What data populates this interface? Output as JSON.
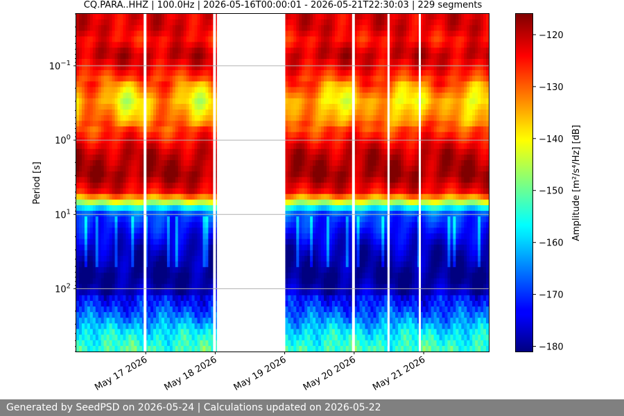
{
  "chart_data": {
    "type": "heatmap",
    "title": "CQ.PARA..HHZ | 100.0Hz | 2026-05-16T00:00:01 - 2026-05-21T22:30:03 | 229 segments",
    "xlabel": "",
    "ylabel": "Period [s]",
    "colorbar_label": "Amplitude [m²/s⁴/Hz] [dB]",
    "colormap": "jet",
    "x_range": [
      "2026-05-16T00:00:01",
      "2026-05-21T22:30:03"
    ],
    "x_ticks": [
      "May 17 2026",
      "May 18 2026",
      "May 19 2026",
      "May 20 2026",
      "May 21 2026"
    ],
    "y_scale": "log",
    "y_range": [
      0.02,
      700
    ],
    "y_ticks": [
      "10^{-1}",
      "10^{0}",
      "10^{1}",
      "10^{2}"
    ],
    "color_range": [
      -181,
      -116
    ],
    "colorbar_ticks": [
      -120,
      -130,
      -140,
      -150,
      -160,
      -170,
      -180
    ],
    "grid": "horizontal",
    "data_gap": [
      "2026-05-18T00:00:00",
      "2026-05-19T00:00:00"
    ],
    "period_profile": [
      {
        "period": 0.03,
        "dB": -122
      },
      {
        "period": 0.045,
        "dB": -125
      },
      {
        "period": 0.07,
        "dB": -120
      },
      {
        "period": 0.12,
        "dB": -125
      },
      {
        "period": 0.2,
        "dB": -133
      },
      {
        "period": 0.3,
        "dB": -138
      },
      {
        "period": 0.5,
        "dB": -134
      },
      {
        "period": 0.8,
        "dB": -127
      },
      {
        "period": 1.5,
        "dB": -120
      },
      {
        "period": 3,
        "dB": -118
      },
      {
        "period": 5,
        "dB": -124
      },
      {
        "period": 6.5,
        "dB": -140
      },
      {
        "period": 8,
        "dB": -156
      },
      {
        "period": 10,
        "dB": -168
      },
      {
        "period": 30,
        "dB": -177
      },
      {
        "period": 70,
        "dB": -180
      },
      {
        "period": 150,
        "dB": -175
      },
      {
        "period": 250,
        "dB": -168
      },
      {
        "period": 400,
        "dB": -160
      },
      {
        "period": 700,
        "dB": -155
      }
    ]
  },
  "footer": {
    "text": "Generated by SeedPSD on 2026-05-24 | Calculations updated on 2026-05-22"
  }
}
